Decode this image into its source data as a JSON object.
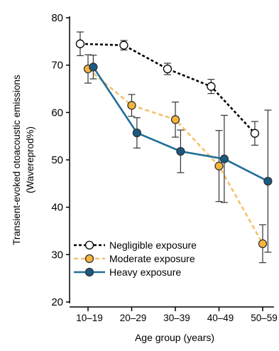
{
  "chart_data": {
    "type": "line",
    "title": "",
    "xlabel": "Age group (years)",
    "ylabel_lines": [
      "Transient-evoked otoacoustic emissions",
      "(Wavereprod%)"
    ],
    "categories": [
      "10–19",
      "20–29",
      "30–39",
      "40–49",
      "50–59"
    ],
    "ylim": [
      20,
      80
    ],
    "yticks": [
      20,
      30,
      40,
      50,
      60,
      70,
      80
    ],
    "grid": false,
    "legend_position": "bottom-left",
    "series": [
      {
        "name": "Negligible exposure",
        "color": "#000000",
        "marker_fill": "#ffffff",
        "line_style": "dotted",
        "x_offset": -0.18,
        "values": [
          74.5,
          74.2,
          69.2,
          65.5,
          55.6
        ],
        "error": [
          2.5,
          1.0,
          1.2,
          1.5,
          2.5
        ]
      },
      {
        "name": "Moderate exposure",
        "color": "#f5c26b",
        "marker_fill": "#f5b43c",
        "line_style": "dashed",
        "x_offset": 0.0,
        "values": [
          69.2,
          61.5,
          58.5,
          48.7,
          32.3
        ],
        "error": [
          3.0,
          2.3,
          3.7,
          7.5,
          4.0
        ]
      },
      {
        "name": "Heavy exposure",
        "color": "#1f6f9a",
        "marker_fill": "#1a5a82",
        "line_style": "solid",
        "x_offset": 0.12,
        "values": [
          69.6,
          55.7,
          51.8,
          50.2,
          45.5
        ],
        "error": [
          2.5,
          3.2,
          4.5,
          9.2,
          15.0
        ]
      }
    ]
  }
}
